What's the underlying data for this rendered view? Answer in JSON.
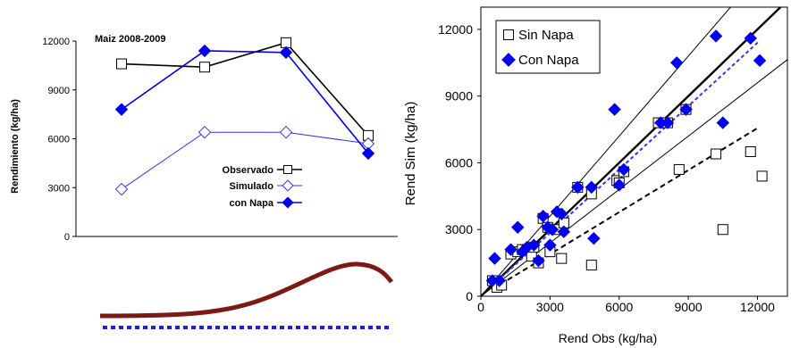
{
  "chart_data": [
    {
      "type": "line",
      "title": "Maiz 2008-2009",
      "ylabel": "Rendimiento (kg/ha)",
      "xlabel": "",
      "ylim": [
        0,
        12000
      ],
      "yticks": [
        0,
        3000,
        6000,
        9000,
        12000
      ],
      "grid": false,
      "legend_position": "bottom-right",
      "x": [
        1,
        2,
        3,
        4
      ],
      "series": [
        {
          "name": "Observado",
          "values": [
            10600,
            10400,
            11900,
            6200
          ],
          "color": "#000000",
          "marker": "open-square"
        },
        {
          "name": "Simulado",
          "values": [
            2900,
            6400,
            6400,
            5700
          ],
          "color": "#3333ff",
          "marker": "open-diamond"
        },
        {
          "name": "con Napa",
          "values": [
            7800,
            11400,
            11300,
            5100
          ],
          "color": "#0000ee",
          "marker": "filled-diamond"
        }
      ]
    },
    {
      "type": "scatter",
      "xlabel": "Rend Obs (kg/ha)",
      "ylabel": "Rend Sim (kg/ha)",
      "xlim": [
        0,
        13300
      ],
      "ylim": [
        0,
        13000
      ],
      "xticks": [
        0,
        3000,
        6000,
        9000,
        12000
      ],
      "yticks": [
        0,
        3000,
        6000,
        9000,
        12000
      ],
      "grid": false,
      "legend_position": "top-left",
      "series": [
        {
          "name": "Sin Napa",
          "marker": "open-square",
          "color": "#000000",
          "points": [
            [
              500,
              700
            ],
            [
              700,
              400
            ],
            [
              900,
              500
            ],
            [
              1300,
              1900
            ],
            [
              1600,
              2000
            ],
            [
              1800,
              2100
            ],
            [
              2000,
              2100
            ],
            [
              2200,
              1800
            ],
            [
              2300,
              2200
            ],
            [
              2500,
              1500
            ],
            [
              2700,
              3500
            ],
            [
              2900,
              3100
            ],
            [
              3000,
              2000
            ],
            [
              3300,
              3000
            ],
            [
              3500,
              1700
            ],
            [
              3600,
              3300
            ],
            [
              4200,
              4900
            ],
            [
              4800,
              4600
            ],
            [
              4800,
              1400
            ],
            [
              5900,
              5200
            ],
            [
              6000,
              5100
            ],
            [
              6200,
              5600
            ],
            [
              7700,
              7800
            ],
            [
              8100,
              7800
            ],
            [
              8600,
              5700
            ],
            [
              8900,
              8400
            ],
            [
              10200,
              6400
            ],
            [
              10500,
              3000
            ],
            [
              11700,
              6500
            ],
            [
              12200,
              5400
            ]
          ]
        },
        {
          "name": "Con Napa",
          "marker": "filled-diamond",
          "color": "#0000ee",
          "points": [
            [
              500,
              700
            ],
            [
              600,
              1700
            ],
            [
              800,
              700
            ],
            [
              1300,
              2100
            ],
            [
              1600,
              3100
            ],
            [
              1800,
              2000
            ],
            [
              2000,
              2200
            ],
            [
              2300,
              2300
            ],
            [
              2500,
              1600
            ],
            [
              2700,
              3600
            ],
            [
              2900,
              3100
            ],
            [
              3000,
              2300
            ],
            [
              3100,
              3000
            ],
            [
              3300,
              3800
            ],
            [
              3500,
              3700
            ],
            [
              3600,
              2900
            ],
            [
              4200,
              4900
            ],
            [
              4800,
              4900
            ],
            [
              4900,
              2600
            ],
            [
              5800,
              8400
            ],
            [
              6000,
              5000
            ],
            [
              6200,
              5700
            ],
            [
              7800,
              7800
            ],
            [
              8100,
              7800
            ],
            [
              8500,
              10500
            ],
            [
              8900,
              8400
            ],
            [
              10200,
              11700
            ],
            [
              10500,
              7800
            ],
            [
              11700,
              11600
            ],
            [
              12100,
              10600
            ]
          ]
        }
      ],
      "reference_lines": [
        {
          "style": "solid-thick",
          "color": "#000000",
          "slope": 1.0,
          "intercept": 0,
          "x_range": [
            0,
            13300
          ]
        },
        {
          "style": "solid-thin",
          "color": "#000000",
          "slope": 1.2,
          "intercept": 0,
          "x_range": [
            0,
            13300
          ]
        },
        {
          "style": "solid-thin",
          "color": "#000000",
          "slope": 0.8,
          "intercept": 0,
          "x_range": [
            0,
            13300
          ]
        },
        {
          "style": "dashed",
          "color": "#000000",
          "slope": 0.63,
          "intercept": 0,
          "x_range": [
            500,
            12000
          ]
        },
        {
          "style": "dashed",
          "color": "#3333ff",
          "slope": 0.95,
          "intercept": 0,
          "x_range": [
            500,
            12100
          ]
        }
      ]
    }
  ]
}
